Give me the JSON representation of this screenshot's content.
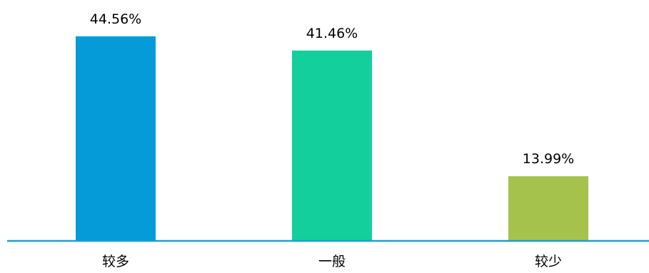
{
  "chart_data": {
    "type": "bar",
    "categories": [
      "较多",
      "一般",
      "较少"
    ],
    "values": [
      44.56,
      41.46,
      13.99
    ],
    "data_labels": [
      "44.56%",
      "41.46%",
      "13.99%"
    ],
    "ylim": [
      0,
      50
    ],
    "grid": false,
    "legend": "none",
    "colors": [
      "#049bd8",
      "#13cf9c",
      "#a5c24c"
    ],
    "axis_color": "#1a9fd1"
  }
}
